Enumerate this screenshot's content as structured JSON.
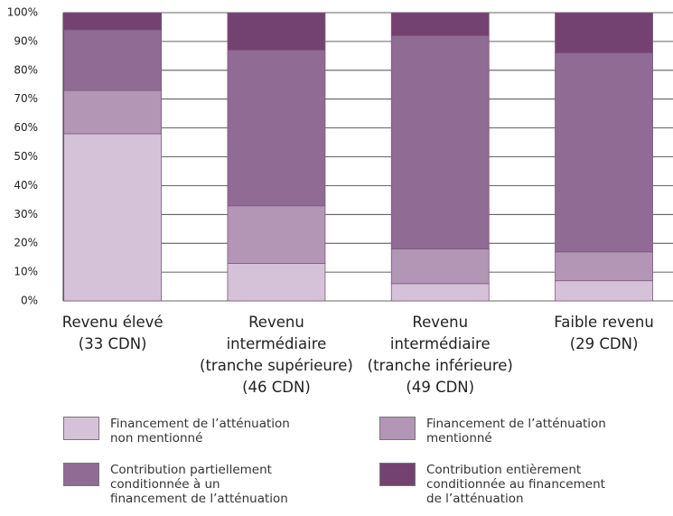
{
  "chart_data": {
    "type": "stacked_bar",
    "categories": [
      [
        "Revenu élevé",
        "(33 CDN)"
      ],
      [
        "Revenu",
        "intermédiaire",
        "(tranche supérieure)",
        "(46 CDN)"
      ],
      [
        "Revenu",
        "intermédiaire",
        "(tranche inférieure)",
        "(49 CDN)"
      ],
      [
        "Faible revenu",
        "(29 CDN)"
      ]
    ],
    "series": [
      {
        "name": "Financement de l’atténuation non mentionné",
        "color": "#d5c2d8",
        "values": [
          58,
          13,
          6,
          7
        ]
      },
      {
        "name": "Financement de l’atténuation mentionné",
        "color": "#b395b5",
        "values": [
          15,
          20,
          12,
          10
        ]
      },
      {
        "name": "Contribution partiellement conditionnée à un financement de l’atténuation",
        "color": "#906b94",
        "values": [
          21,
          54,
          74,
          69
        ]
      },
      {
        "name": "Contribution entièrement conditionnée au financement de l’atténuation",
        "color": "#744271",
        "values": [
          6,
          13,
          8,
          14
        ]
      }
    ],
    "ylim": [
      0,
      100
    ],
    "yticks": [
      {
        "value": 0,
        "label": "0%"
      },
      {
        "value": 10,
        "label": "10%"
      },
      {
        "value": 20,
        "label": "20%"
      },
      {
        "value": 30,
        "label": "30%"
      },
      {
        "value": 40,
        "label": "40%"
      },
      {
        "value": 50,
        "label": "50%"
      },
      {
        "value": 60,
        "label": "60%"
      },
      {
        "value": 70,
        "label": "70%"
      },
      {
        "value": 80,
        "label": "80%"
      },
      {
        "value": 90,
        "label": "90%"
      },
      {
        "value": 100,
        "label": "100%"
      }
    ],
    "grid": true
  }
}
